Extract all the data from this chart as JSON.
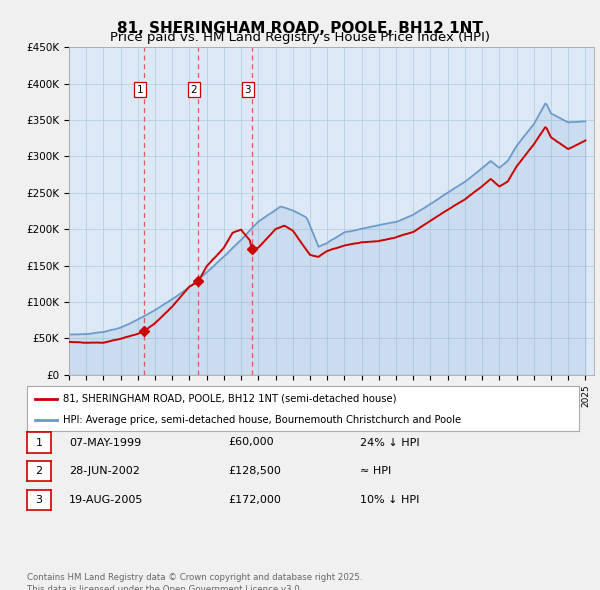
{
  "title": "81, SHERINGHAM ROAD, POOLE, BH12 1NT",
  "subtitle": "Price paid vs. HM Land Registry's House Price Index (HPI)",
  "bg_color": "#f0f0f0",
  "plot_bg_color": "#dce8f5",
  "grid_color": "#b8cfe0",
  "ylim": [
    0,
    450000
  ],
  "yticks": [
    0,
    50000,
    100000,
    150000,
    200000,
    250000,
    300000,
    350000,
    400000,
    450000
  ],
  "ytick_labels": [
    "£0",
    "£50K",
    "£100K",
    "£150K",
    "£200K",
    "£250K",
    "£300K",
    "£350K",
    "£400K",
    "£450K"
  ],
  "xlim_start": 1995.0,
  "xlim_end": 2025.5,
  "sale_dates": [
    1999.35,
    2002.49,
    2005.63
  ],
  "sale_prices": [
    60000,
    128500,
    172000
  ],
  "sale_labels": [
    "1",
    "2",
    "3"
  ],
  "red_line_color": "#cc0000",
  "blue_line_color": "#6699cc",
  "vline_color": "#dd4444",
  "dot_color": "#cc0000",
  "legend_red_label": "81, SHERINGHAM ROAD, POOLE, BH12 1NT (semi-detached house)",
  "legend_blue_label": "HPI: Average price, semi-detached house, Bournemouth Christchurch and Poole",
  "table_rows": [
    [
      "1",
      "07-MAY-1999",
      "£60,000",
      "24% ↓ HPI"
    ],
    [
      "2",
      "28-JUN-2002",
      "£128,500",
      "≈ HPI"
    ],
    [
      "3",
      "19-AUG-2005",
      "£172,000",
      "10% ↓ HPI"
    ]
  ],
  "footnote": "Contains HM Land Registry data © Crown copyright and database right 2025.\nThis data is licensed under the Open Government Licence v3.0.",
  "title_fontsize": 11,
  "subtitle_fontsize": 9.5
}
